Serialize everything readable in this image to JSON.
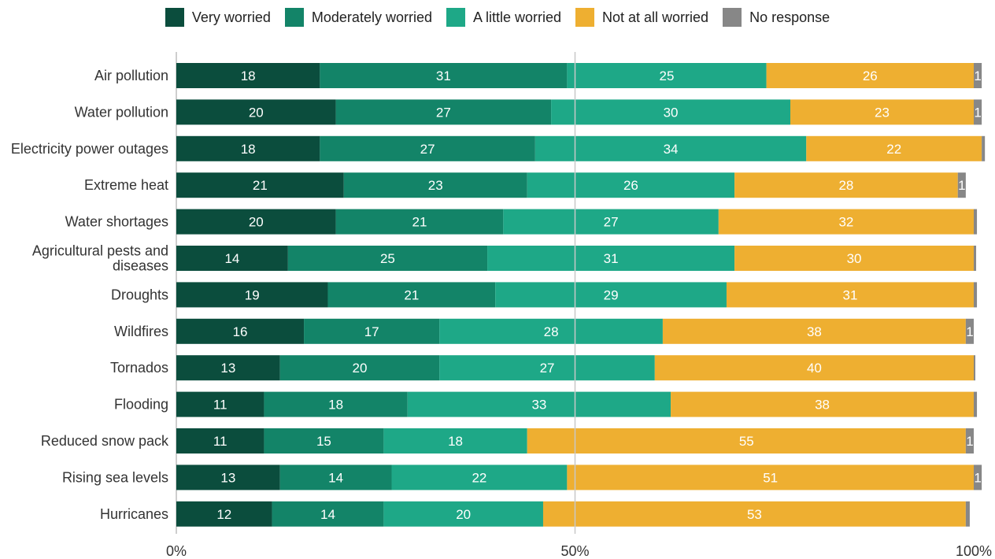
{
  "chart_data": {
    "type": "bar",
    "orientation": "horizontal",
    "stacked": true,
    "legend_position": "top",
    "grid": true,
    "xlim": [
      0,
      100
    ],
    "x_ticks": [
      "0%",
      "50%",
      "100%"
    ],
    "categories": [
      "Air pollution",
      "Water pollution",
      "Electricity power outages",
      "Extreme heat",
      "Water shortages",
      "Agricultural pests and diseases",
      "Droughts",
      "Wildfires",
      "Tornados",
      "Flooding",
      "Reduced snow pack",
      "Rising sea levels",
      "Hurricanes"
    ],
    "series": [
      {
        "name": "Very worried",
        "color": "#0b4d3d",
        "values": [
          18,
          20,
          18,
          21,
          20,
          14,
          19,
          16,
          13,
          11,
          11,
          13,
          12
        ]
      },
      {
        "name": "Moderately worried",
        "color": "#138468",
        "values": [
          31,
          27,
          27,
          23,
          21,
          25,
          21,
          17,
          20,
          18,
          15,
          14,
          14
        ]
      },
      {
        "name": "A little worried",
        "color": "#1ea887",
        "values": [
          25,
          30,
          34,
          26,
          27,
          31,
          29,
          28,
          27,
          33,
          18,
          22,
          20
        ]
      },
      {
        "name": "Not at all worried",
        "color": "#eeaf31",
        "values": [
          26,
          23,
          22,
          28,
          32,
          30,
          31,
          38,
          40,
          38,
          55,
          51,
          53
        ]
      },
      {
        "name": "No response",
        "color": "#878787",
        "values": [
          1,
          1,
          0.4,
          1,
          0.4,
          0.3,
          0.4,
          1,
          0.2,
          0.4,
          1,
          1,
          0.5
        ]
      }
    ],
    "value_labels": [
      [
        "18",
        "31",
        "25",
        "26",
        "1"
      ],
      [
        "20",
        "27",
        "30",
        "23",
        "1"
      ],
      [
        "18",
        "27",
        "34",
        "22",
        ""
      ],
      [
        "21",
        "23",
        "26",
        "28",
        "1"
      ],
      [
        "20",
        "21",
        "27",
        "32",
        ""
      ],
      [
        "14",
        "25",
        "31",
        "30",
        ""
      ],
      [
        "19",
        "21",
        "29",
        "31",
        ""
      ],
      [
        "16",
        "17",
        "28",
        "38",
        "1"
      ],
      [
        "13",
        "20",
        "27",
        "40",
        ""
      ],
      [
        "11",
        "18",
        "33",
        "38",
        ""
      ],
      [
        "11",
        "15",
        "18",
        "55",
        "1"
      ],
      [
        "13",
        "14",
        "22",
        "51",
        "1"
      ],
      [
        "12",
        "14",
        "20",
        "53",
        ""
      ]
    ]
  }
}
